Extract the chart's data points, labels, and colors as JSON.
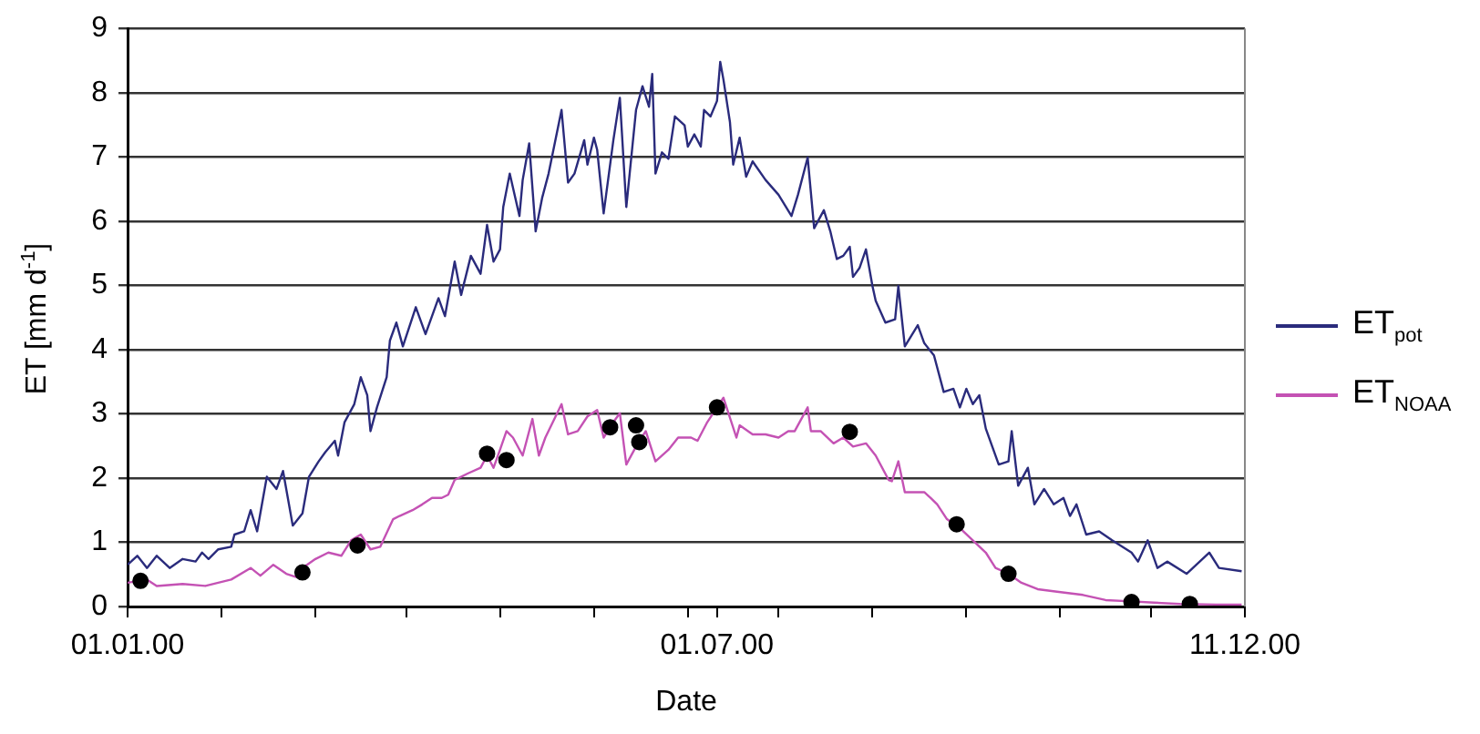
{
  "chart_data": {
    "type": "line",
    "xlabel": "Date",
    "ylabel": "ET [mm d$^{-1}$]",
    "xlim": [
      "2000-01-01",
      "2000-12-11"
    ],
    "xticks": [
      {
        "value": "2000-01-01",
        "label": "01.01.00"
      },
      {
        "value": "2000-01-30",
        "label": null
      },
      {
        "value": "2000-02-28",
        "label": null
      },
      {
        "value": "2000-03-27",
        "label": null
      },
      {
        "value": "2000-04-25",
        "label": null
      },
      {
        "value": "2000-05-24",
        "label": null
      },
      {
        "value": "2000-06-22",
        "label": null
      },
      {
        "value": "2000-07-01",
        "label": "01.07.00"
      },
      {
        "value": "2000-07-20",
        "label": null
      },
      {
        "value": "2000-08-18",
        "label": null
      },
      {
        "value": "2000-09-16",
        "label": null
      },
      {
        "value": "2000-10-15",
        "label": null
      },
      {
        "value": "2000-11-12",
        "label": null
      },
      {
        "value": "2000-12-11",
        "label": "11.12.00"
      }
    ],
    "ylim": [
      0,
      9
    ],
    "yticks": [
      0,
      1,
      2,
      3,
      4,
      5,
      6,
      7,
      8,
      9
    ],
    "grid": "y",
    "legend": "right",
    "series": [
      {
        "name": "ET$_{pot}$",
        "color": "#2a2b7c",
        "x": [
          "2000-01-01",
          "2000-01-04",
          "2000-01-07",
          "2000-01-10",
          "2000-01-14",
          "2000-01-18",
          "2000-01-22",
          "2000-01-24",
          "2000-01-26",
          "2000-01-29",
          "2000-02-02",
          "2000-02-03",
          "2000-02-06",
          "2000-02-08",
          "2000-02-10",
          "2000-02-13",
          "2000-02-16",
          "2000-02-18",
          "2000-02-21",
          "2000-02-24",
          "2000-02-26",
          "2000-02-29",
          "2000-03-02",
          "2000-03-05",
          "2000-03-06",
          "2000-03-08",
          "2000-03-11",
          "2000-03-13",
          "2000-03-15",
          "2000-03-16",
          "2000-03-18",
          "2000-03-21",
          "2000-03-22",
          "2000-03-24",
          "2000-03-26",
          "2000-03-30",
          "2000-04-02",
          "2000-04-06",
          "2000-04-08",
          "2000-04-11",
          "2000-04-13",
          "2000-04-16",
          "2000-04-19",
          "2000-04-21",
          "2000-04-23",
          "2000-04-25",
          "2000-04-26",
          "2000-04-28",
          "2000-05-01",
          "2000-05-02",
          "2000-05-04",
          "2000-05-06",
          "2000-05-08",
          "2000-05-10",
          "2000-05-14",
          "2000-05-16",
          "2000-05-18",
          "2000-05-21",
          "2000-05-22",
          "2000-05-24",
          "2000-05-25",
          "2000-05-27",
          "2000-05-30",
          "2000-06-01",
          "2000-06-03",
          "2000-06-06",
          "2000-06-08",
          "2000-06-10",
          "2000-06-11",
          "2000-06-12",
          "2000-06-14",
          "2000-06-16",
          "2000-06-18",
          "2000-06-21",
          "2000-06-22",
          "2000-06-24",
          "2000-06-26",
          "2000-06-27",
          "2000-06-29",
          "2000-07-01",
          "2000-07-02",
          "2000-07-03",
          "2000-07-05",
          "2000-07-06",
          "2000-07-08",
          "2000-07-10",
          "2000-07-12",
          "2000-07-16",
          "2000-07-20",
          "2000-07-24",
          "2000-07-26",
          "2000-07-29",
          "2000-07-31",
          "2000-08-03",
          "2000-08-05",
          "2000-08-07",
          "2000-08-09",
          "2000-08-11",
          "2000-08-12",
          "2000-08-14",
          "2000-08-16",
          "2000-08-18",
          "2000-08-19",
          "2000-08-22",
          "2000-08-25",
          "2000-08-26",
          "2000-08-28",
          "2000-09-01",
          "2000-09-03",
          "2000-09-06",
          "2000-09-09",
          "2000-09-12",
          "2000-09-14",
          "2000-09-16",
          "2000-09-18",
          "2000-09-20",
          "2000-09-22",
          "2000-09-26",
          "2000-09-29",
          "2000-09-30",
          "2000-10-02",
          "2000-10-05",
          "2000-10-07",
          "2000-10-10",
          "2000-10-13",
          "2000-10-16",
          "2000-10-18",
          "2000-10-20",
          "2000-10-23",
          "2000-10-27",
          "2000-10-31",
          "2000-11-06",
          "2000-11-08",
          "2000-11-11",
          "2000-11-14",
          "2000-11-17",
          "2000-11-23",
          "2000-11-30",
          "2000-12-03",
          "2000-12-10"
        ],
        "values": [
          0.65,
          0.79,
          0.6,
          0.79,
          0.6,
          0.74,
          0.7,
          0.84,
          0.74,
          0.89,
          0.93,
          1.12,
          1.17,
          1.5,
          1.17,
          2.02,
          1.83,
          2.11,
          1.26,
          1.45,
          2.02,
          2.26,
          2.4,
          2.58,
          2.35,
          2.87,
          3.15,
          3.57,
          3.29,
          2.73,
          3.1,
          3.57,
          4.14,
          4.42,
          4.05,
          4.66,
          4.24,
          4.8,
          4.52,
          5.37,
          4.85,
          5.46,
          5.18,
          5.94,
          5.37,
          5.56,
          6.22,
          6.74,
          6.08,
          6.64,
          7.21,
          5.84,
          6.36,
          6.74,
          7.73,
          6.6,
          6.74,
          7.26,
          6.88,
          7.3,
          7.11,
          6.12,
          7.26,
          7.92,
          6.22,
          7.73,
          8.1,
          7.78,
          8.29,
          6.74,
          7.07,
          6.97,
          7.63,
          7.49,
          7.16,
          7.35,
          7.16,
          7.73,
          7.63,
          7.87,
          8.48,
          8.2,
          7.54,
          6.88,
          7.3,
          6.69,
          6.93,
          6.64,
          6.41,
          6.08,
          6.41,
          6.99,
          5.89,
          6.17,
          5.84,
          5.41,
          5.46,
          5.6,
          5.13,
          5.27,
          5.56,
          4.99,
          4.76,
          4.42,
          4.47,
          4.99,
          4.05,
          4.38,
          4.1,
          3.91,
          3.34,
          3.39,
          3.1,
          3.39,
          3.15,
          3.29,
          2.77,
          2.21,
          2.26,
          2.73,
          1.88,
          2.16,
          1.59,
          1.83,
          1.59,
          1.69,
          1.41,
          1.59,
          1.12,
          1.17,
          1.03,
          0.84,
          0.7,
          1.03,
          0.6,
          0.7,
          0.51,
          0.84,
          0.6,
          0.55
        ]
      },
      {
        "name": "ET$_{NOAA}$",
        "color": "#c452b4",
        "x": [
          "2000-01-01",
          "2000-01-07",
          "2000-01-10",
          "2000-01-18",
          "2000-01-25",
          "2000-02-02",
          "2000-02-08",
          "2000-02-11",
          "2000-02-15",
          "2000-02-19",
          "2000-02-22",
          "2000-02-24",
          "2000-02-28",
          "2000-03-03",
          "2000-03-07",
          "2000-03-10",
          "2000-03-13",
          "2000-03-16",
          "2000-03-19",
          "2000-03-23",
          "2000-03-25",
          "2000-03-29",
          "2000-04-01",
          "2000-04-04",
          "2000-04-07",
          "2000-04-09",
          "2000-04-11",
          "2000-04-15",
          "2000-04-19",
          "2000-04-21",
          "2000-04-23",
          "2000-04-25",
          "2000-04-27",
          "2000-04-29",
          "2000-05-02",
          "2000-05-05",
          "2000-05-07",
          "2000-05-09",
          "2000-05-14",
          "2000-05-16",
          "2000-05-19",
          "2000-05-22",
          "2000-05-25",
          "2000-05-27",
          "2000-05-30",
          "2000-06-01",
          "2000-06-03",
          "2000-06-06",
          "2000-06-09",
          "2000-06-12",
          "2000-06-16",
          "2000-06-19",
          "2000-06-23",
          "2000-06-25",
          "2000-06-28",
          "2000-07-01",
          "2000-07-03",
          "2000-07-07",
          "2000-07-08",
          "2000-07-12",
          "2000-07-16",
          "2000-07-20",
          "2000-07-23",
          "2000-07-25",
          "2000-07-29",
          "2000-07-30",
          "2000-08-02",
          "2000-08-06",
          "2000-08-09",
          "2000-08-12",
          "2000-08-16",
          "2000-08-19",
          "2000-08-23",
          "2000-08-24",
          "2000-08-26",
          "2000-08-28",
          "2000-09-03",
          "2000-09-05",
          "2000-09-07",
          "2000-09-10",
          "2000-09-14",
          "2000-09-18",
          "2000-09-22",
          "2000-09-25",
          "2000-09-29",
          "2000-10-03",
          "2000-10-08",
          "2000-10-14",
          "2000-10-22",
          "2000-10-29",
          "2000-11-06",
          "2000-11-13",
          "2000-11-21",
          "2000-12-02",
          "2000-12-10"
        ],
        "values": [
          0.37,
          0.42,
          0.32,
          0.35,
          0.32,
          0.42,
          0.6,
          0.48,
          0.65,
          0.51,
          0.46,
          0.6,
          0.74,
          0.84,
          0.79,
          1.03,
          1.12,
          0.89,
          0.93,
          1.36,
          1.41,
          1.5,
          1.59,
          1.69,
          1.69,
          1.74,
          1.97,
          2.07,
          2.16,
          2.35,
          2.16,
          2.44,
          2.73,
          2.63,
          2.35,
          2.92,
          2.35,
          2.63,
          3.15,
          2.68,
          2.73,
          2.96,
          3.06,
          2.63,
          2.87,
          3.01,
          2.21,
          2.49,
          2.73,
          2.26,
          2.44,
          2.63,
          2.63,
          2.58,
          2.87,
          3.1,
          3.25,
          2.63,
          2.82,
          2.68,
          2.68,
          2.63,
          2.73,
          2.73,
          3.1,
          2.73,
          2.73,
          2.54,
          2.63,
          2.49,
          2.54,
          2.35,
          1.97,
          1.95,
          2.26,
          1.78,
          1.78,
          1.69,
          1.59,
          1.36,
          1.22,
          1.03,
          0.84,
          0.6,
          0.51,
          0.37,
          0.27,
          0.23,
          0.18,
          0.1,
          0.08,
          0.06,
          0.04,
          0.03,
          0.03
        ]
      },
      {
        "type": "scatter",
        "color": "#000000",
        "marker": "circle",
        "x": [
          "2000-01-05",
          "2000-02-24",
          "2000-03-12",
          "2000-04-21",
          "2000-04-27",
          "2000-05-29",
          "2000-06-06",
          "2000-06-07",
          "2000-07-01",
          "2000-08-11",
          "2000-09-13",
          "2000-09-29",
          "2000-11-06",
          "2000-11-24"
        ],
        "values": [
          0.4,
          0.53,
          0.95,
          2.38,
          2.28,
          2.79,
          2.82,
          2.56,
          3.1,
          2.72,
          1.28,
          0.51,
          0.07,
          0.04
        ]
      }
    ]
  }
}
